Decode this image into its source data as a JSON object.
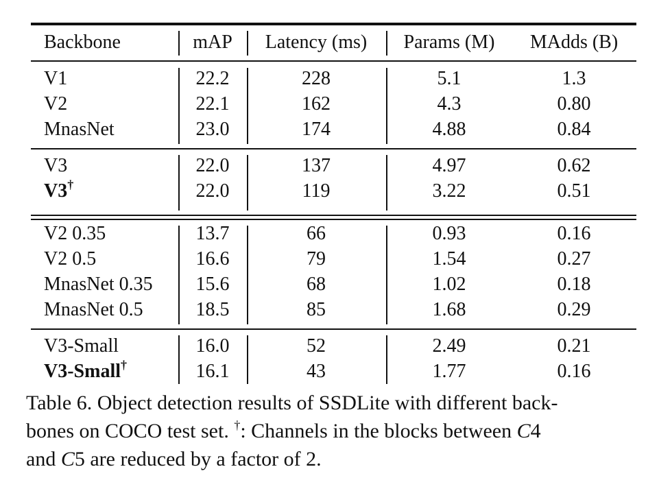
{
  "table": {
    "header": [
      "Backbone",
      "mAP",
      "Latency (ms)",
      "Params (M)",
      "MAdds (B)"
    ],
    "groups": [
      [
        [
          {
            "text": "V1"
          },
          "22.2",
          "228",
          "5.1",
          "1.3"
        ],
        [
          {
            "text": "V2"
          },
          "22.1",
          "162",
          "4.3",
          "0.80"
        ],
        [
          {
            "text": "MnasNet"
          },
          "23.0",
          "174",
          "4.88",
          "0.84"
        ]
      ],
      [
        [
          {
            "text": "V3"
          },
          "22.0",
          "137",
          "4.97",
          "0.62"
        ],
        [
          {
            "text": "V3",
            "sup": "†",
            "bold": true
          },
          "22.0",
          "119",
          "3.22",
          "0.51"
        ]
      ],
      [
        [
          {
            "text": "V2 0.35"
          },
          "13.7",
          "66",
          "0.93",
          "0.16"
        ],
        [
          {
            "text": "V2 0.5"
          },
          "16.6",
          "79",
          "1.54",
          "0.27"
        ],
        [
          {
            "text": "MnasNet 0.35"
          },
          "15.6",
          "68",
          "1.02",
          "0.18"
        ],
        [
          {
            "text": "MnasNet 0.5"
          },
          "18.5",
          "85",
          "1.68",
          "0.29"
        ]
      ],
      [
        [
          {
            "text": "V3-Small"
          },
          "16.0",
          "52",
          "2.49",
          "0.21"
        ],
        [
          {
            "text": "V3-Small",
            "sup": "†",
            "bold": true
          },
          "16.1",
          "43",
          "1.77",
          "0.16"
        ]
      ]
    ]
  },
  "caption": {
    "lines": [
      [
        {
          "text": "Table 6. Object detection results of SSDLite with different back-"
        }
      ],
      [
        {
          "text": "bones on COCO test set. "
        },
        {
          "text": "†",
          "style": "sup"
        },
        {
          "text": ": Channels in the blocks between "
        },
        {
          "text": "C",
          "style": "italic"
        },
        {
          "text": "4"
        }
      ],
      [
        {
          "text": "and "
        },
        {
          "text": "C",
          "style": "italic"
        },
        {
          "text": "5 are reduced by a factor of 2."
        }
      ]
    ]
  }
}
